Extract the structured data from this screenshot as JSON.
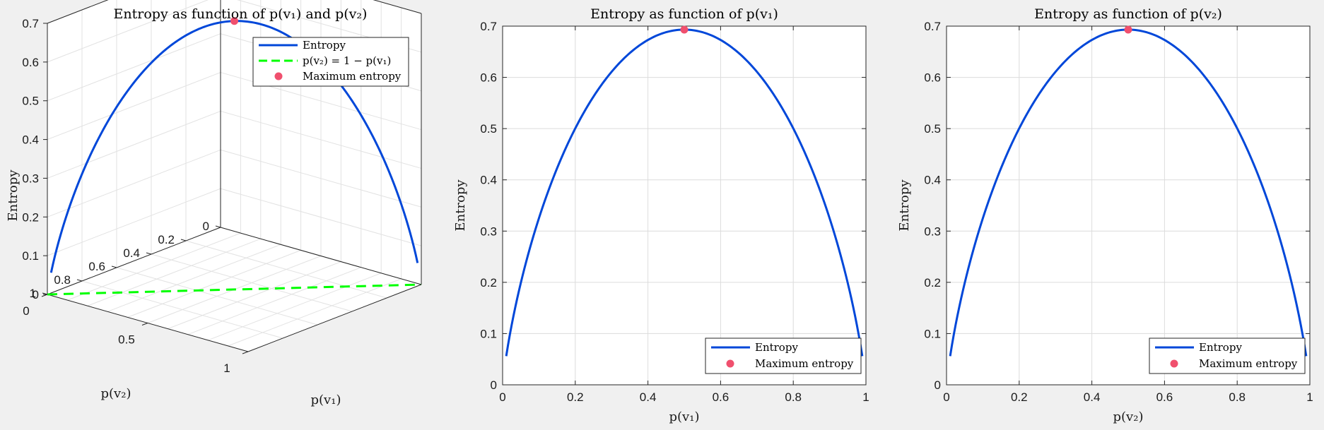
{
  "chart_data": [
    {
      "type": "line3d",
      "title": "Entropy as function of p(v₁) and p(v₂)",
      "xlabel": "p(v₁)",
      "ylabel": "p(v₂)",
      "zlabel": "Entropy",
      "xticks": [
        "0",
        "0.5",
        "1"
      ],
      "yticks": [
        "0",
        "0.2",
        "0.4",
        "0.6",
        "0.8",
        "1"
      ],
      "zticks": [
        "0",
        "0.1",
        "0.2",
        "0.3",
        "0.4",
        "0.5",
        "0.6",
        "0.7"
      ],
      "xlim": [
        0,
        1
      ],
      "ylim": [
        0,
        1
      ],
      "zlim": [
        0,
        0.7
      ],
      "grid": true,
      "legend_position": "top-right",
      "series": [
        {
          "name": "Entropy",
          "style": "solid",
          "color": "#0047d9",
          "function": "-(p*ln(p)+(1-p)*ln(1-p))",
          "p_range": [
            0.01,
            0.99
          ]
        },
        {
          "name": "p(v₂) = 1 − p(v₁)",
          "style": "dashed",
          "color": "#00ff00",
          "x": [
            0,
            1
          ],
          "y": [
            1,
            0
          ],
          "z": [
            0,
            0
          ]
        },
        {
          "name": "Maximum entropy",
          "style": "marker",
          "color": "#f0506e",
          "x": [
            0.5
          ],
          "y": [
            0.5
          ],
          "z": [
            0.6931
          ]
        }
      ]
    },
    {
      "type": "line",
      "title": "Entropy as function of p(v₁)",
      "xlabel": "p(v₁)",
      "ylabel": "Entropy",
      "xticks": [
        "0",
        "0.2",
        "0.4",
        "0.6",
        "0.8",
        "1"
      ],
      "yticks": [
        "0",
        "0.1",
        "0.2",
        "0.3",
        "0.4",
        "0.5",
        "0.6",
        "0.7"
      ],
      "xlim": [
        0,
        1
      ],
      "ylim": [
        0,
        0.7
      ],
      "grid": true,
      "legend_position": "bottom-right",
      "series": [
        {
          "name": "Entropy",
          "style": "solid",
          "color": "#0047d9",
          "function": "-(p*ln(p)+(1-p)*ln(1-p))",
          "p_range": [
            0.01,
            0.99
          ]
        },
        {
          "name": "Maximum entropy",
          "style": "marker",
          "color": "#f0506e",
          "x": [
            0.5
          ],
          "y": [
            0.6931
          ]
        }
      ]
    },
    {
      "type": "line",
      "title": "Entropy as function of p(v₂)",
      "xlabel": "p(v₂)",
      "ylabel": "Entropy",
      "xticks": [
        "0",
        "0.2",
        "0.4",
        "0.6",
        "0.8",
        "1"
      ],
      "yticks": [
        "0",
        "0.1",
        "0.2",
        "0.3",
        "0.4",
        "0.5",
        "0.6",
        "0.7"
      ],
      "xlim": [
        0,
        1
      ],
      "ylim": [
        0,
        0.7
      ],
      "grid": true,
      "legend_position": "bottom-right",
      "series": [
        {
          "name": "Entropy",
          "style": "solid",
          "color": "#0047d9",
          "function": "-(p*ln(p)+(1-p)*ln(1-p))",
          "p_range": [
            0.01,
            0.99
          ]
        },
        {
          "name": "Maximum entropy",
          "style": "marker",
          "color": "#f0506e",
          "x": [
            0.5
          ],
          "y": [
            0.6931
          ]
        }
      ]
    }
  ]
}
